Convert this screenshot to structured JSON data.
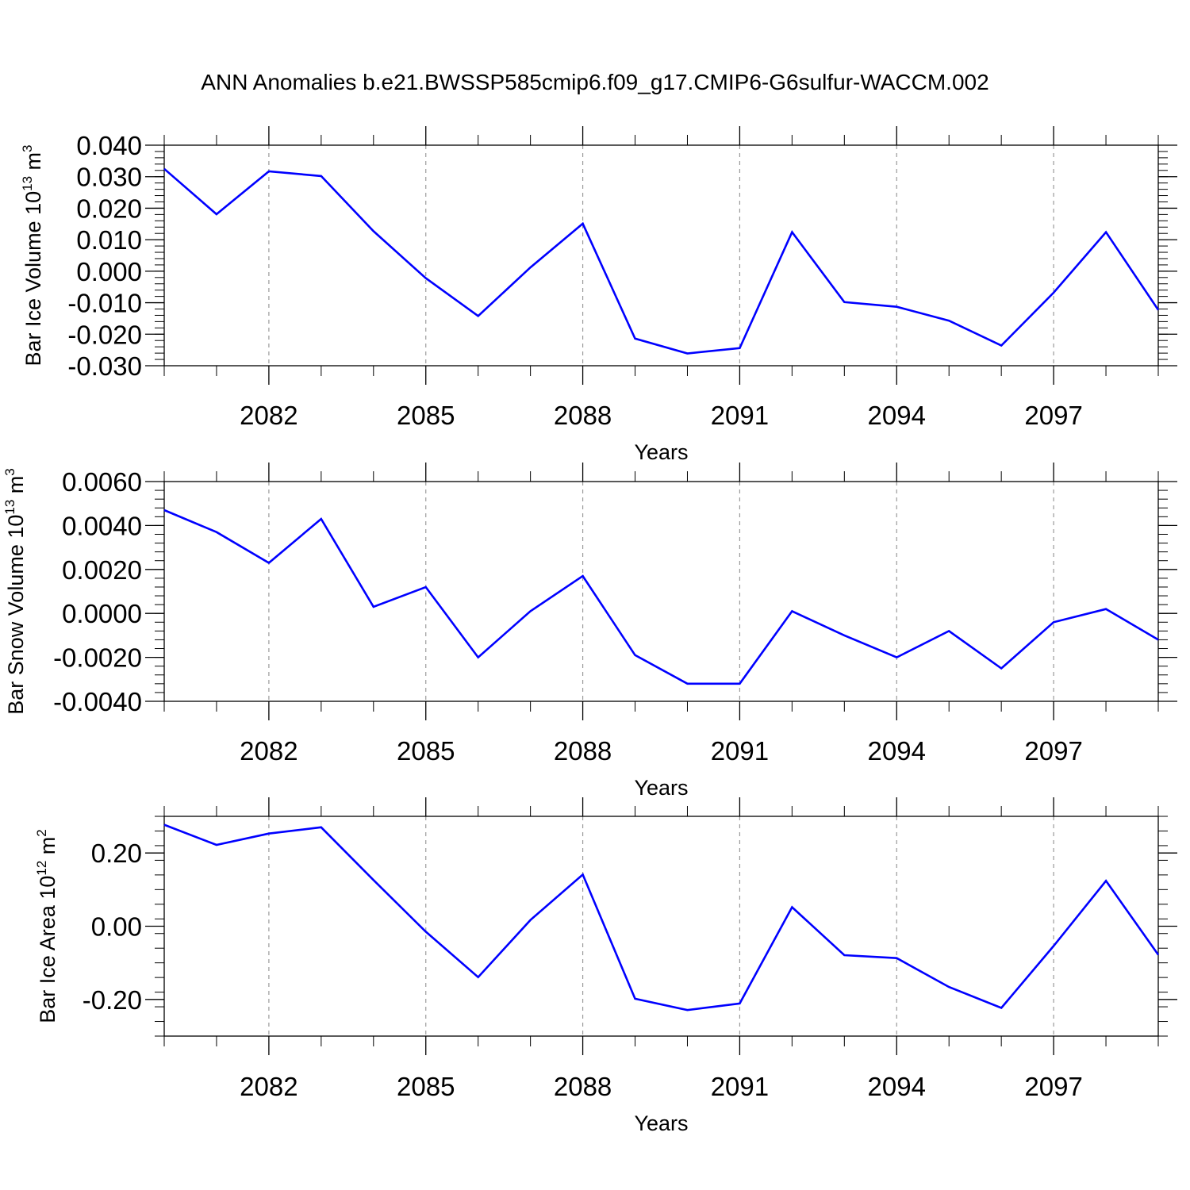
{
  "title": "ANN Anomalies b.e21.BWSSP585cmip6.f09_g17.CMIP6-G6sulfur-WACCM.002",
  "colors": {
    "series": "#0000ff",
    "grid": "#9a9a9a",
    "axis": "#000000"
  },
  "chart_data": [
    {
      "type": "line",
      "ylabel_main": "Bar Ice Volume 10",
      "ylabel_exp": "13",
      "ylabel_unit": "m",
      "ylabel_unit_exp": "3",
      "xlabel": "Years",
      "xlim": [
        2080,
        2099
      ],
      "ylim": [
        -0.03,
        0.04
      ],
      "yticks": [
        -0.03,
        -0.02,
        -0.01,
        0.0,
        0.01,
        0.02,
        0.03,
        0.04
      ],
      "ytick_labels": [
        "-0.030",
        "-0.020",
        "-0.010",
        "0.000",
        "0.010",
        "0.020",
        "0.030",
        "0.040"
      ],
      "xticks": [
        2082,
        2085,
        2088,
        2091,
        2094,
        2097
      ],
      "xtick_labels": [
        "2082",
        "2085",
        "2088",
        "2091",
        "2094",
        "2097"
      ],
      "grid": "vertical dashed at labeled x ticks",
      "x": [
        2080,
        2081,
        2082,
        2083,
        2084,
        2085,
        2086,
        2087,
        2088,
        2089,
        2090,
        2091,
        2092,
        2093,
        2094,
        2095,
        2096,
        2097,
        2098,
        2099
      ],
      "values": [
        0.0325,
        0.0181,
        0.0317,
        0.0302,
        0.0127,
        -0.0022,
        -0.0142,
        0.0012,
        0.0151,
        -0.0214,
        -0.0261,
        -0.0244,
        0.0124,
        -0.0098,
        -0.0113,
        -0.0157,
        -0.0236,
        -0.0068,
        0.0124,
        -0.0123
      ]
    },
    {
      "type": "line",
      "ylabel_main": "Bar Snow Volume 10",
      "ylabel_exp": "13",
      "ylabel_unit": "m",
      "ylabel_unit_exp": "3",
      "xlabel": "Years",
      "xlim": [
        2080,
        2099
      ],
      "ylim": [
        -0.004,
        0.006
      ],
      "yticks": [
        -0.004,
        -0.002,
        0.0,
        0.002,
        0.004,
        0.006
      ],
      "ytick_labels": [
        "-0.0040",
        "-0.0020",
        "0.0000",
        "0.0020",
        "0.0040",
        "0.0060"
      ],
      "xticks": [
        2082,
        2085,
        2088,
        2091,
        2094,
        2097
      ],
      "xtick_labels": [
        "2082",
        "2085",
        "2088",
        "2091",
        "2094",
        "2097"
      ],
      "grid": "vertical dashed at labeled x ticks",
      "x": [
        2080,
        2081,
        2082,
        2083,
        2084,
        2085,
        2086,
        2087,
        2088,
        2089,
        2090,
        2091,
        2092,
        2093,
        2094,
        2095,
        2096,
        2097,
        2098,
        2099
      ],
      "values": [
        0.0047,
        0.0037,
        0.0023,
        0.0043,
        0.0003,
        0.0012,
        -0.002,
        0.0001,
        0.0017,
        -0.0019,
        -0.0032,
        -0.0032,
        0.0001,
        -0.001,
        -0.002,
        -0.0008,
        -0.0025,
        -0.0004,
        0.0002,
        -0.0012
      ]
    },
    {
      "type": "line",
      "ylabel_main": "Bar Ice Area 10",
      "ylabel_exp": "12",
      "ylabel_unit": "m",
      "ylabel_unit_exp": "2",
      "xlabel": "Years",
      "xlim": [
        2080,
        2099
      ],
      "ylim": [
        -0.3,
        0.3
      ],
      "yticks": [
        -0.2,
        0.0,
        0.2
      ],
      "ytick_labels": [
        "-0.20",
        "0.00",
        "0.20"
      ],
      "xticks": [
        2082,
        2085,
        2088,
        2091,
        2094,
        2097
      ],
      "xtick_labels": [
        "2082",
        "2085",
        "2088",
        "2091",
        "2094",
        "2097"
      ],
      "grid": "vertical dashed at labeled x ticks",
      "x": [
        2080,
        2081,
        2082,
        2083,
        2084,
        2085,
        2086,
        2087,
        2088,
        2089,
        2090,
        2091,
        2092,
        2093,
        2094,
        2095,
        2096,
        2097,
        2098,
        2099
      ],
      "values": [
        0.277,
        0.222,
        0.253,
        0.27,
        0.126,
        -0.015,
        -0.139,
        0.017,
        0.141,
        -0.198,
        -0.229,
        -0.211,
        0.052,
        -0.079,
        -0.087,
        -0.166,
        -0.223,
        -0.054,
        0.124,
        -0.078
      ]
    }
  ]
}
